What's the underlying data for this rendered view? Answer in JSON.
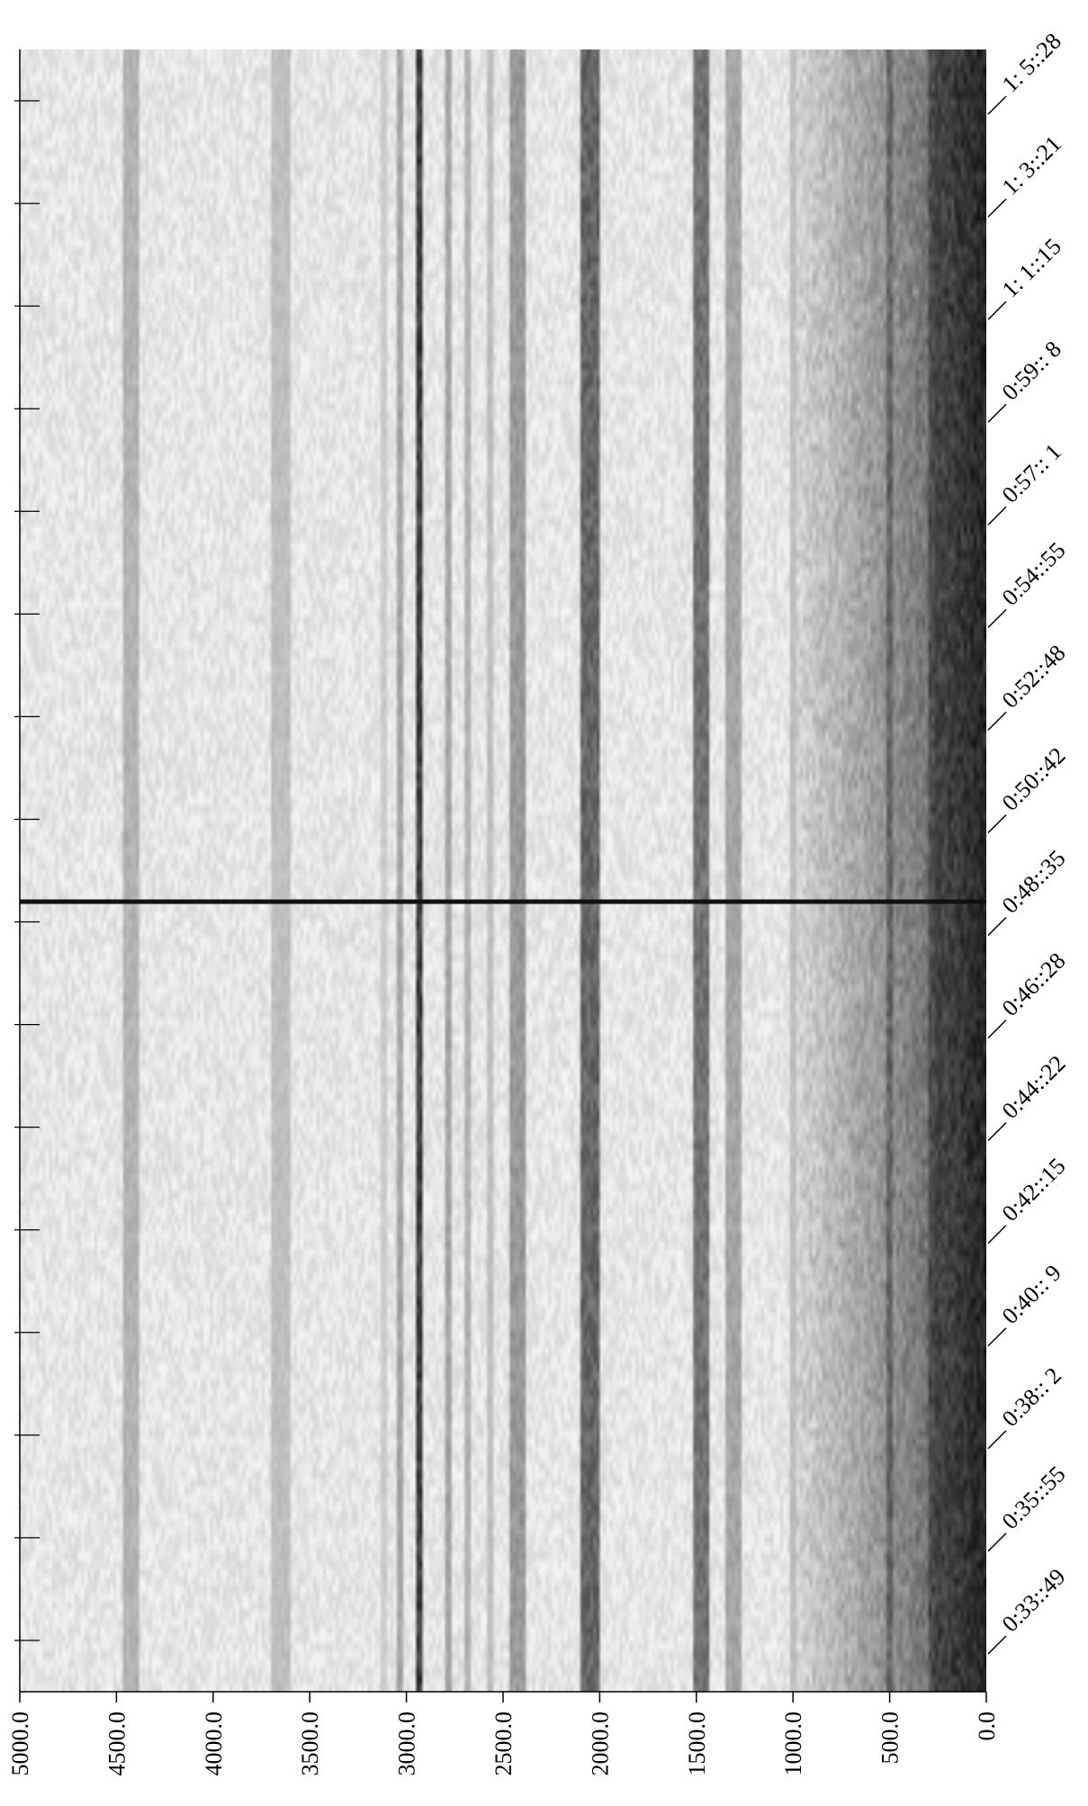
{
  "chart_data": {
    "type": "heatmap",
    "title": "",
    "xlabel": "",
    "ylabel": "",
    "colormap": "grayscale (white = low, black = high)",
    "freq_axis": {
      "range": [
        0.0,
        5000.0
      ],
      "direction": "decreasing left to right",
      "position": "bottom",
      "ticks": [
        5000.0,
        4500.0,
        4000.0,
        3500.0,
        3000.0,
        2500.0,
        2000.0,
        1500.0,
        1000.0,
        500.0,
        0.0
      ],
      "tick_labels": [
        "5000.0",
        "4500.0",
        "4000.0",
        "3500.0",
        "3000.0",
        "2500.0",
        "2000.0",
        "1500.0",
        "1000.0",
        "500.0",
        "0.0"
      ]
    },
    "time_axis": {
      "position": "right",
      "direction": "later toward top",
      "tick_labels": [
        "0:33::49",
        "0:35::55",
        "0:38:: 2",
        "0:40:: 9",
        "0:42::15",
        "0:44::22",
        "0:46::28",
        "0:48::35",
        "0:50::42",
        "0:52::48",
        "0:54::55",
        "0:57:: 1",
        "0:59:: 8",
        "1: 1::15",
        "1: 3::21",
        "1: 5::28"
      ]
    },
    "events": [
      {
        "type": "broadband-spike",
        "time": "0:49"
      }
    ],
    "bands": [
      {
        "freq": 4420,
        "width": 90,
        "level": 0.3
      },
      {
        "freq": 3650,
        "width": 90,
        "level": 0.25
      },
      {
        "freq": 3120,
        "width": 40,
        "level": 0.2
      },
      {
        "freq": 3030,
        "width": 40,
        "level": 0.35
      },
      {
        "freq": 2930,
        "width": 35,
        "level": 0.75
      },
      {
        "freq": 2780,
        "width": 40,
        "level": 0.35
      },
      {
        "freq": 2680,
        "width": 40,
        "level": 0.3
      },
      {
        "freq": 2560,
        "width": 35,
        "level": 0.25
      },
      {
        "freq": 2420,
        "width": 80,
        "level": 0.4
      },
      {
        "freq": 2050,
        "width": 90,
        "level": 0.6
      },
      {
        "freq": 1480,
        "width": 90,
        "level": 0.55
      },
      {
        "freq": 1310,
        "width": 80,
        "level": 0.35
      },
      {
        "freq": 1000,
        "width": 40,
        "level": 0.25
      },
      {
        "freq": 500,
        "width": 25,
        "level": 0.6
      },
      {
        "freq": 250,
        "width": 25,
        "level": 0.7
      }
    ]
  }
}
